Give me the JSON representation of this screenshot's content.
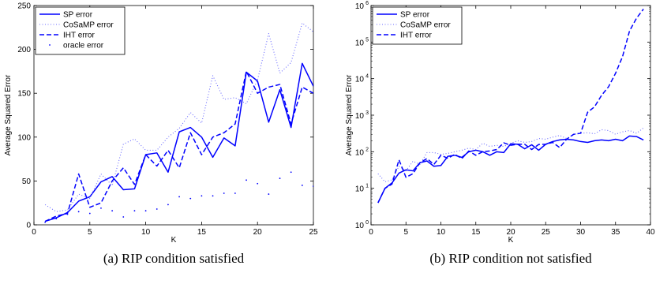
{
  "chart_data": [
    {
      "type": "line",
      "panel": "a",
      "caption": "(a) RIP condition satisfied",
      "xlabel": "K",
      "ylabel": "Average Squared Error",
      "xlim": [
        0,
        25
      ],
      "ylim": [
        0,
        250
      ],
      "yscale": "linear",
      "xticks": [
        0,
        5,
        10,
        15,
        20,
        25
      ],
      "xtick_labels": [
        "0",
        "5",
        "10",
        "15",
        "20",
        "25"
      ],
      "yticks": [
        0,
        50,
        100,
        150,
        200,
        250
      ],
      "ytick_labels": [
        "0",
        "50",
        "100",
        "150",
        "200",
        "250"
      ],
      "legend_position": "top-left",
      "series": [
        {
          "name": "SP error",
          "style": "solid",
          "color": "#0000ff",
          "x": [
            1,
            2,
            3,
            4,
            5,
            6,
            7,
            8,
            9,
            10,
            11,
            12,
            13,
            14,
            15,
            16,
            17,
            18,
            19,
            20,
            21,
            22,
            23,
            24,
            25
          ],
          "y": [
            4,
            8,
            14,
            27,
            32,
            49,
            55,
            40,
            41,
            80,
            82,
            60,
            106,
            111,
            100,
            77,
            99,
            90,
            174,
            164,
            117,
            154,
            111,
            184,
            158
          ]
        },
        {
          "name": "CoSaMP error",
          "style": "dotted",
          "color": "#6a6aff",
          "x": [
            1,
            2,
            3,
            4,
            5,
            6,
            7,
            8,
            9,
            10,
            11,
            12,
            13,
            14,
            15,
            16,
            17,
            18,
            19,
            20,
            21,
            22,
            23,
            24,
            25
          ],
          "y": [
            23,
            15,
            17,
            35,
            30,
            58,
            45,
            92,
            98,
            85,
            85,
            100,
            110,
            128,
            116,
            170,
            143,
            145,
            138,
            165,
            218,
            173,
            185,
            230,
            220
          ]
        },
        {
          "name": "IHT error",
          "style": "dashed",
          "color": "#0000ff",
          "x": [
            1,
            2,
            3,
            4,
            5,
            6,
            7,
            8,
            9,
            10,
            11,
            12,
            13,
            14,
            15,
            16,
            17,
            18,
            19,
            20,
            21,
            22,
            23,
            24,
            25
          ],
          "y": [
            4,
            10,
            13,
            58,
            20,
            25,
            50,
            65,
            46,
            80,
            67,
            85,
            65,
            105,
            80,
            100,
            105,
            115,
            175,
            150,
            157,
            160,
            115,
            157,
            150
          ]
        },
        {
          "name": "oracle error",
          "style": "points",
          "color": "#0000ff",
          "x": [
            1,
            2,
            3,
            4,
            5,
            6,
            7,
            8,
            9,
            10,
            11,
            12,
            13,
            14,
            15,
            16,
            17,
            18,
            19,
            20,
            21,
            22,
            23,
            24,
            25
          ],
          "y": [
            3,
            7,
            12,
            15,
            13,
            19,
            16,
            9,
            16,
            16,
            18,
            23,
            32,
            30,
            33,
            33,
            36,
            36,
            51,
            47,
            35,
            53,
            60,
            45,
            44
          ]
        }
      ]
    },
    {
      "type": "line",
      "panel": "b",
      "caption": "(b) RIP condition not satisfied",
      "xlabel": "K",
      "ylabel": "Average Squared Error",
      "xlim": [
        0,
        40
      ],
      "ylim": [
        1,
        1000000
      ],
      "yscale": "log",
      "xticks": [
        0,
        5,
        10,
        15,
        20,
        25,
        30,
        35,
        40
      ],
      "xtick_labels": [
        "0",
        "5",
        "10",
        "15",
        "20",
        "25",
        "30",
        "35",
        "40"
      ],
      "yticks": [
        1,
        10,
        100,
        1000,
        10000,
        100000,
        1000000
      ],
      "ytick_labels": [
        "10^0",
        "10^1",
        "10^2",
        "10^3",
        "10^4",
        "10^5",
        "10^6"
      ],
      "legend_position": "top-left",
      "series": [
        {
          "name": "SP error",
          "style": "solid",
          "color": "#0000ff",
          "x": [
            1,
            2,
            3,
            4,
            5,
            6,
            7,
            8,
            9,
            10,
            11,
            12,
            13,
            14,
            15,
            16,
            17,
            18,
            19,
            20,
            21,
            22,
            23,
            24,
            25,
            26,
            27,
            28,
            29,
            30,
            31,
            32,
            33,
            34,
            35,
            36,
            37,
            38,
            39
          ],
          "y": [
            4,
            10,
            14,
            26,
            32,
            30,
            50,
            56,
            40,
            42,
            75,
            80,
            70,
            100,
            110,
            100,
            80,
            100,
            95,
            165,
            160,
            120,
            155,
            110,
            160,
            190,
            210,
            220,
            210,
            190,
            180,
            200,
            210,
            200,
            220,
            200,
            270,
            260,
            210
          ]
        },
        {
          "name": "CoSaMP error",
          "style": "dotted",
          "color": "#6a6aff",
          "x": [
            1,
            2,
            3,
            4,
            5,
            6,
            7,
            8,
            9,
            10,
            11,
            12,
            13,
            14,
            15,
            16,
            17,
            18,
            19,
            20,
            21,
            22,
            23,
            24,
            25,
            26,
            27,
            28,
            29,
            30,
            31,
            32,
            33,
            34,
            35,
            36,
            37,
            38,
            39
          ],
          "y": [
            25,
            15,
            17,
            40,
            30,
            55,
            45,
            95,
            95,
            85,
            90,
            100,
            110,
            125,
            115,
            170,
            140,
            150,
            140,
            170,
            200,
            180,
            190,
            230,
            220,
            250,
            280,
            230,
            300,
            320,
            330,
            310,
            400,
            380,
            300,
            350,
            380,
            320,
            450
          ]
        },
        {
          "name": "IHT error",
          "style": "dashed",
          "color": "#0000ff",
          "x": [
            1,
            2,
            3,
            4,
            5,
            6,
            7,
            8,
            9,
            10,
            11,
            12,
            13,
            14,
            15,
            16,
            17,
            18,
            19,
            20,
            21,
            22,
            23,
            24,
            25,
            26,
            27,
            28,
            29,
            30,
            31,
            32,
            33,
            34,
            35,
            36,
            37,
            38,
            39
          ],
          "y": [
            4,
            10,
            13,
            60,
            20,
            25,
            50,
            65,
            45,
            80,
            66,
            85,
            65,
            105,
            80,
            100,
            105,
            115,
            175,
            150,
            160,
            160,
            115,
            158,
            160,
            180,
            130,
            220,
            300,
            320,
            1200,
            1700,
            3500,
            6000,
            14000,
            40000,
            200000,
            450000,
            800000
          ]
        }
      ]
    }
  ]
}
